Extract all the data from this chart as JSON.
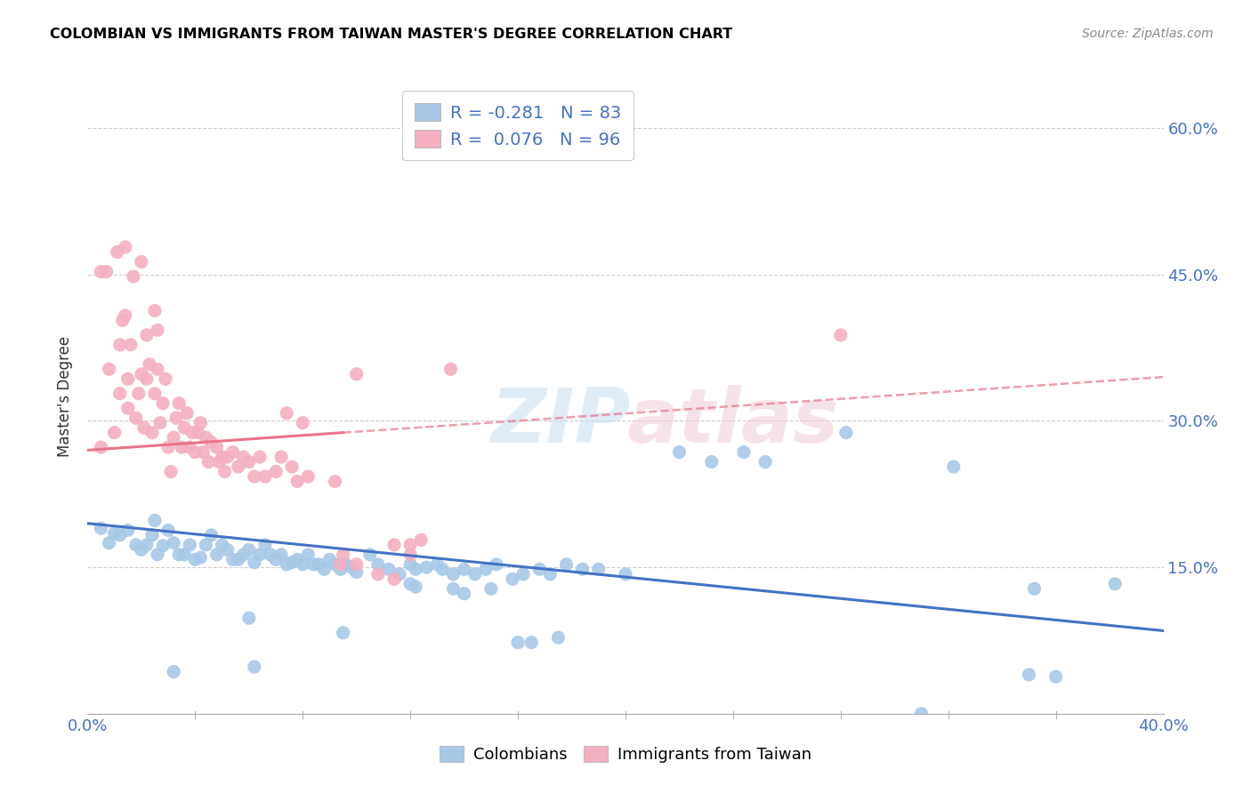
{
  "title": "COLOMBIAN VS IMMIGRANTS FROM TAIWAN MASTER'S DEGREE CORRELATION CHART",
  "source": "Source: ZipAtlas.com",
  "ylabel": "Master's Degree",
  "xlim": [
    0.0,
    0.4
  ],
  "ylim": [
    0.0,
    0.65
  ],
  "ytick_vals": [
    0.15,
    0.3,
    0.45,
    0.6
  ],
  "ytick_labels": [
    "15.0%",
    "30.0%",
    "45.0%",
    "60.0%"
  ],
  "xtick_vals": [
    0.0,
    0.4
  ],
  "xtick_labels": [
    "0.0%",
    "40.0%"
  ],
  "legend_blue_label": "Colombians",
  "legend_pink_label": "Immigrants from Taiwan",
  "R_blue": -0.281,
  "N_blue": 83,
  "R_pink": 0.076,
  "N_pink": 96,
  "blue_color": "#a8c8e8",
  "pink_color": "#f4afc0",
  "blue_line_color": "#4472c4",
  "pink_line_color": "#e8748a",
  "blue_line": {
    "x0": 0.0,
    "y0": 0.195,
    "x1": 0.4,
    "y1": 0.085
  },
  "pink_line_solid": {
    "x0": 0.0,
    "y0": 0.27,
    "x1": 0.095,
    "y1": 0.288
  },
  "pink_line_dash": {
    "x0": 0.095,
    "y0": 0.288,
    "x1": 0.4,
    "y1": 0.345
  },
  "blue_scatter": [
    [
      0.005,
      0.19
    ],
    [
      0.008,
      0.175
    ],
    [
      0.01,
      0.185
    ],
    [
      0.012,
      0.183
    ],
    [
      0.015,
      0.188
    ],
    [
      0.018,
      0.173
    ],
    [
      0.02,
      0.168
    ],
    [
      0.022,
      0.173
    ],
    [
      0.024,
      0.183
    ],
    [
      0.025,
      0.198
    ],
    [
      0.026,
      0.163
    ],
    [
      0.028,
      0.172
    ],
    [
      0.03,
      0.188
    ],
    [
      0.032,
      0.175
    ],
    [
      0.034,
      0.163
    ],
    [
      0.036,
      0.163
    ],
    [
      0.038,
      0.173
    ],
    [
      0.04,
      0.158
    ],
    [
      0.042,
      0.16
    ],
    [
      0.044,
      0.173
    ],
    [
      0.046,
      0.183
    ],
    [
      0.048,
      0.163
    ],
    [
      0.05,
      0.173
    ],
    [
      0.052,
      0.168
    ],
    [
      0.054,
      0.158
    ],
    [
      0.056,
      0.158
    ],
    [
      0.058,
      0.163
    ],
    [
      0.06,
      0.168
    ],
    [
      0.062,
      0.155
    ],
    [
      0.064,
      0.163
    ],
    [
      0.066,
      0.173
    ],
    [
      0.068,
      0.163
    ],
    [
      0.07,
      0.158
    ],
    [
      0.072,
      0.163
    ],
    [
      0.074,
      0.153
    ],
    [
      0.076,
      0.155
    ],
    [
      0.078,
      0.158
    ],
    [
      0.08,
      0.153
    ],
    [
      0.082,
      0.163
    ],
    [
      0.084,
      0.153
    ],
    [
      0.086,
      0.153
    ],
    [
      0.088,
      0.148
    ],
    [
      0.09,
      0.158
    ],
    [
      0.092,
      0.153
    ],
    [
      0.094,
      0.148
    ],
    [
      0.096,
      0.153
    ],
    [
      0.098,
      0.15
    ],
    [
      0.1,
      0.145
    ],
    [
      0.105,
      0.163
    ],
    [
      0.108,
      0.153
    ],
    [
      0.112,
      0.148
    ],
    [
      0.116,
      0.143
    ],
    [
      0.12,
      0.153
    ],
    [
      0.122,
      0.148
    ],
    [
      0.126,
      0.15
    ],
    [
      0.13,
      0.153
    ],
    [
      0.132,
      0.148
    ],
    [
      0.136,
      0.143
    ],
    [
      0.14,
      0.148
    ],
    [
      0.144,
      0.143
    ],
    [
      0.148,
      0.148
    ],
    [
      0.152,
      0.153
    ],
    [
      0.158,
      0.138
    ],
    [
      0.162,
      0.143
    ],
    [
      0.168,
      0.148
    ],
    [
      0.172,
      0.143
    ],
    [
      0.178,
      0.153
    ],
    [
      0.184,
      0.148
    ],
    [
      0.06,
      0.098
    ],
    [
      0.095,
      0.083
    ],
    [
      0.12,
      0.133
    ],
    [
      0.122,
      0.13
    ],
    [
      0.136,
      0.128
    ],
    [
      0.14,
      0.123
    ],
    [
      0.15,
      0.128
    ],
    [
      0.16,
      0.073
    ],
    [
      0.165,
      0.073
    ],
    [
      0.175,
      0.078
    ],
    [
      0.19,
      0.148
    ],
    [
      0.2,
      0.143
    ],
    [
      0.22,
      0.268
    ],
    [
      0.232,
      0.258
    ],
    [
      0.244,
      0.268
    ],
    [
      0.252,
      0.258
    ],
    [
      0.282,
      0.288
    ],
    [
      0.322,
      0.253
    ],
    [
      0.382,
      0.133
    ],
    [
      0.352,
      0.128
    ],
    [
      0.032,
      0.043
    ],
    [
      0.062,
      0.048
    ],
    [
      0.31,
      0.0
    ],
    [
      0.35,
      0.04
    ],
    [
      0.36,
      0.038
    ]
  ],
  "pink_scatter": [
    [
      0.005,
      0.273
    ],
    [
      0.008,
      0.353
    ],
    [
      0.01,
      0.288
    ],
    [
      0.012,
      0.378
    ],
    [
      0.013,
      0.403
    ],
    [
      0.014,
      0.408
    ],
    [
      0.015,
      0.343
    ],
    [
      0.016,
      0.378
    ],
    [
      0.018,
      0.303
    ],
    [
      0.019,
      0.328
    ],
    [
      0.02,
      0.348
    ],
    [
      0.021,
      0.293
    ],
    [
      0.022,
      0.343
    ],
    [
      0.023,
      0.358
    ],
    [
      0.024,
      0.288
    ],
    [
      0.025,
      0.328
    ],
    [
      0.026,
      0.353
    ],
    [
      0.027,
      0.298
    ],
    [
      0.028,
      0.318
    ],
    [
      0.029,
      0.343
    ],
    [
      0.03,
      0.273
    ],
    [
      0.031,
      0.248
    ],
    [
      0.032,
      0.283
    ],
    [
      0.033,
      0.303
    ],
    [
      0.034,
      0.318
    ],
    [
      0.035,
      0.273
    ],
    [
      0.036,
      0.293
    ],
    [
      0.037,
      0.308
    ],
    [
      0.038,
      0.273
    ],
    [
      0.039,
      0.288
    ],
    [
      0.04,
      0.268
    ],
    [
      0.041,
      0.288
    ],
    [
      0.042,
      0.298
    ],
    [
      0.043,
      0.268
    ],
    [
      0.044,
      0.283
    ],
    [
      0.045,
      0.258
    ],
    [
      0.046,
      0.278
    ],
    [
      0.048,
      0.273
    ],
    [
      0.049,
      0.258
    ],
    [
      0.05,
      0.263
    ],
    [
      0.051,
      0.248
    ],
    [
      0.052,
      0.263
    ],
    [
      0.054,
      0.268
    ],
    [
      0.056,
      0.253
    ],
    [
      0.058,
      0.263
    ],
    [
      0.06,
      0.258
    ],
    [
      0.062,
      0.243
    ],
    [
      0.064,
      0.263
    ],
    [
      0.066,
      0.243
    ],
    [
      0.07,
      0.248
    ],
    [
      0.072,
      0.263
    ],
    [
      0.076,
      0.253
    ],
    [
      0.078,
      0.238
    ],
    [
      0.082,
      0.243
    ],
    [
      0.092,
      0.238
    ],
    [
      0.005,
      0.453
    ],
    [
      0.007,
      0.453
    ],
    [
      0.011,
      0.473
    ],
    [
      0.014,
      0.478
    ],
    [
      0.017,
      0.448
    ],
    [
      0.02,
      0.463
    ],
    [
      0.022,
      0.388
    ],
    [
      0.025,
      0.413
    ],
    [
      0.026,
      0.393
    ],
    [
      0.012,
      0.328
    ],
    [
      0.015,
      0.313
    ],
    [
      0.1,
      0.348
    ],
    [
      0.094,
      0.153
    ],
    [
      0.1,
      0.153
    ],
    [
      0.108,
      0.143
    ],
    [
      0.114,
      0.138
    ],
    [
      0.12,
      0.173
    ],
    [
      0.124,
      0.178
    ],
    [
      0.08,
      0.298
    ],
    [
      0.074,
      0.308
    ],
    [
      0.28,
      0.388
    ],
    [
      0.114,
      0.173
    ],
    [
      0.12,
      0.163
    ],
    [
      0.135,
      0.353
    ],
    [
      0.095,
      0.163
    ]
  ]
}
